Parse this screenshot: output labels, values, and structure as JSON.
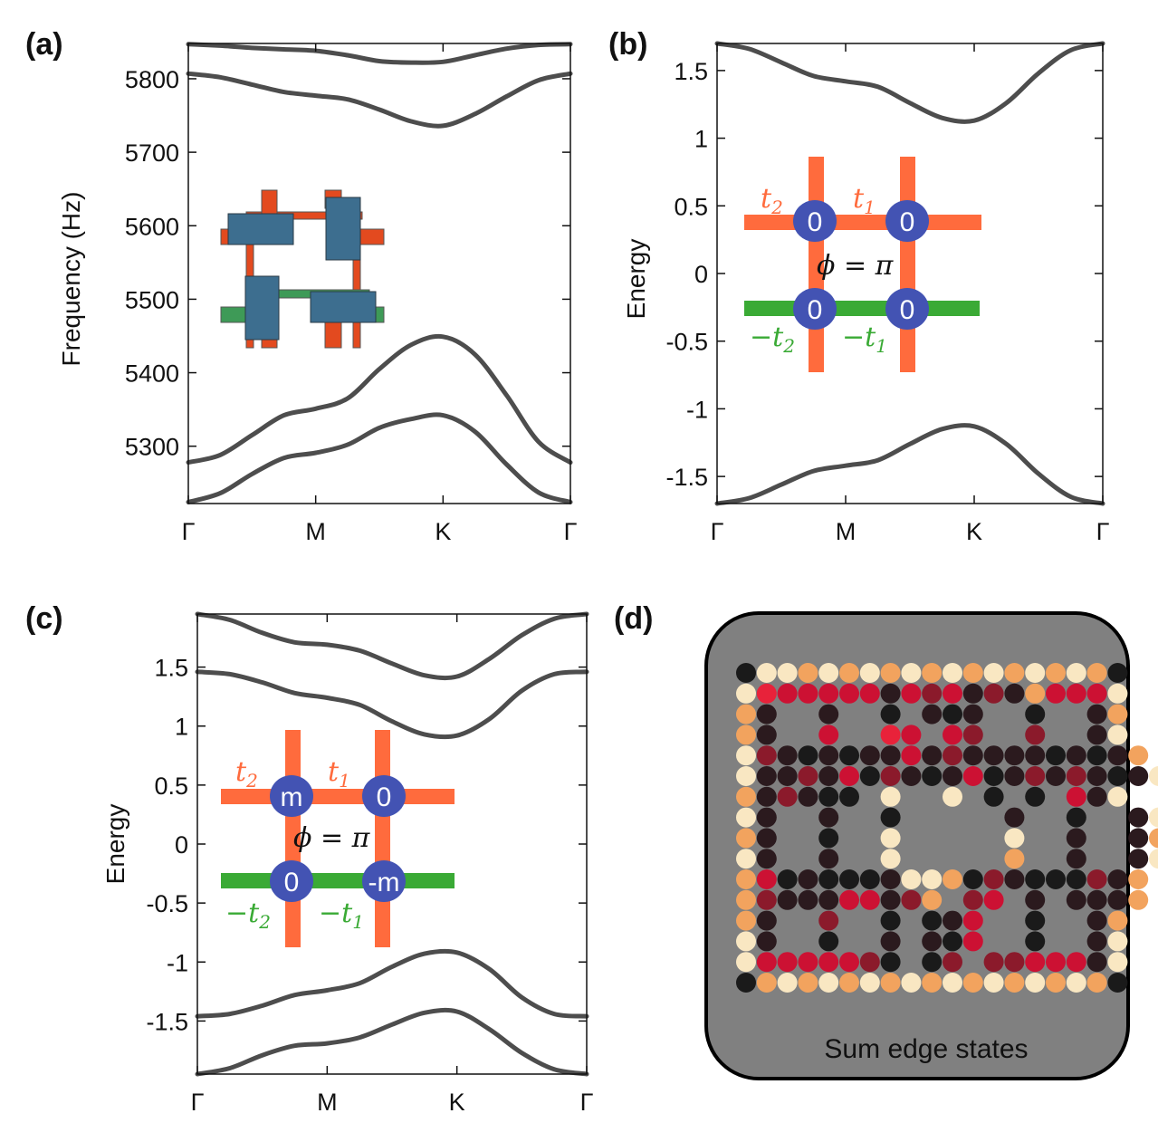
{
  "panel_labels": [
    "(a)",
    "(b)",
    "(c)",
    "(d)"
  ],
  "colors": {
    "band": "#4d4d4d",
    "hopping_positive": "#ff6b3d",
    "hopping_negative": "#3aaa35",
    "node": "#4353b3",
    "resonator_body": "#3d6e8f",
    "resonator_stub_red": "#e34a1f",
    "resonator_stub_green": "#3e9a57",
    "edge_panel_bg": "#808080"
  },
  "chart_data": [
    {
      "type": "line",
      "panel": "(a)",
      "ylabel": "Frequency (Hz)",
      "ylim": [
        5222,
        5848
      ],
      "yticks": [
        5300,
        5400,
        5500,
        5600,
        5700,
        5800
      ],
      "ytick_labels": [
        "5300",
        "5400",
        "5500",
        "5600",
        "5700",
        "5800"
      ],
      "xticks": [
        "Γ",
        "M",
        "K",
        "Γ"
      ],
      "series": [
        {
          "x": [
            0,
            0.25,
            0.5,
            0.75,
            1,
            1.25,
            1.5,
            1.75,
            2,
            2.25,
            2.5,
            2.75,
            3
          ],
          "values": [
            5847,
            5845,
            5842,
            5840,
            5838,
            5832,
            5824,
            5822,
            5823,
            5832,
            5841,
            5846,
            5847
          ]
        },
        {
          "x": [
            0,
            0.25,
            0.5,
            0.75,
            1,
            1.25,
            1.5,
            1.75,
            2,
            2.25,
            2.5,
            2.75,
            3
          ],
          "values": [
            5807,
            5802,
            5792,
            5782,
            5777,
            5772,
            5758,
            5742,
            5736,
            5752,
            5776,
            5798,
            5807
          ]
        },
        {
          "x": [
            0,
            0.25,
            0.5,
            0.75,
            1,
            1.25,
            1.5,
            1.75,
            2,
            2.25,
            2.5,
            2.75,
            3
          ],
          "values": [
            5278,
            5288,
            5315,
            5342,
            5351,
            5365,
            5405,
            5438,
            5449,
            5425,
            5369,
            5306,
            5278
          ]
        },
        {
          "x": [
            0,
            0.25,
            0.5,
            0.75,
            1,
            1.25,
            1.5,
            1.75,
            2,
            2.25,
            2.5,
            2.75,
            3
          ],
          "values": [
            5224,
            5236,
            5262,
            5284,
            5291,
            5302,
            5325,
            5337,
            5342,
            5320,
            5275,
            5237,
            5224
          ]
        }
      ]
    },
    {
      "type": "line",
      "panel": "(b)",
      "ylabel": "Energy",
      "ylim": [
        -1.7,
        1.7
      ],
      "yticks": [
        -1.5,
        -1,
        -0.5,
        0,
        0.5,
        1,
        1.5
      ],
      "ytick_labels": [
        "-1.5",
        "-1",
        "-0.5",
        "0",
        "0.5",
        "1",
        "1.5"
      ],
      "xticks": [
        "Γ",
        "M",
        "K",
        "Γ"
      ],
      "series": [
        {
          "x": [
            0,
            0.25,
            0.5,
            0.75,
            1,
            1.25,
            1.5,
            1.75,
            2,
            2.25,
            2.5,
            2.75,
            3
          ],
          "values": [
            1.7,
            1.66,
            1.56,
            1.46,
            1.42,
            1.38,
            1.26,
            1.15,
            1.13,
            1.26,
            1.48,
            1.65,
            1.7
          ]
        },
        {
          "x": [
            0,
            0.25,
            0.5,
            0.75,
            1,
            1.25,
            1.5,
            1.75,
            2,
            2.25,
            2.5,
            2.75,
            3
          ],
          "values": [
            -1.7,
            -1.66,
            -1.56,
            -1.46,
            -1.42,
            -1.38,
            -1.26,
            -1.15,
            -1.13,
            -1.26,
            -1.48,
            -1.65,
            -1.7
          ]
        }
      ]
    },
    {
      "type": "line",
      "panel": "(c)",
      "ylabel": "Energy",
      "ylim": [
        -1.95,
        1.95
      ],
      "yticks": [
        -1.5,
        -1,
        -0.5,
        0,
        0.5,
        1,
        1.5
      ],
      "ytick_labels": [
        "-1.5",
        "-1",
        "-0.5",
        "0",
        "0.5",
        "1",
        "1.5"
      ],
      "xticks": [
        "Γ",
        "M",
        "K",
        "Γ"
      ],
      "series": [
        {
          "x": [
            0,
            0.25,
            0.5,
            0.75,
            1,
            1.25,
            1.5,
            1.75,
            2,
            2.25,
            2.5,
            2.75,
            3
          ],
          "values": [
            1.95,
            1.9,
            1.79,
            1.71,
            1.69,
            1.64,
            1.53,
            1.43,
            1.42,
            1.57,
            1.77,
            1.91,
            1.95
          ]
        },
        {
          "x": [
            0,
            0.25,
            0.5,
            0.75,
            1,
            1.25,
            1.5,
            1.75,
            2,
            2.25,
            2.5,
            2.75,
            3
          ],
          "values": [
            1.46,
            1.44,
            1.37,
            1.28,
            1.24,
            1.18,
            1.04,
            0.93,
            0.92,
            1.06,
            1.3,
            1.44,
            1.46
          ]
        },
        {
          "x": [
            0,
            0.25,
            0.5,
            0.75,
            1,
            1.25,
            1.5,
            1.75,
            2,
            2.25,
            2.5,
            2.75,
            3
          ],
          "values": [
            -1.46,
            -1.44,
            -1.37,
            -1.28,
            -1.24,
            -1.18,
            -1.04,
            -0.93,
            -0.92,
            -1.06,
            -1.3,
            -1.44,
            -1.46
          ]
        },
        {
          "x": [
            0,
            0.25,
            0.5,
            0.75,
            1,
            1.25,
            1.5,
            1.75,
            2,
            2.25,
            2.5,
            2.75,
            3
          ],
          "values": [
            -1.95,
            -1.9,
            -1.79,
            -1.71,
            -1.69,
            -1.64,
            -1.53,
            -1.43,
            -1.42,
            -1.57,
            -1.77,
            -1.91,
            -1.95
          ]
        }
      ]
    },
    {
      "type": "heatmap",
      "panel": "(d)",
      "caption": "Sum edge states",
      "palette": [
        "#1a1a1a",
        "#2b1a1e",
        "#8b1a2b",
        "#cc1133",
        "#e8223a",
        "#f2a35e",
        "#f9e7c2"
      ],
      "grid": [
        "0665656565656565650",
        "6433333132312153336",
        "51  1  0 101  0  15",
        "51  3  43 32  2  16",
        "62101011312111101015",
        "611213021013012121016",
        "512100 6  6 0 0 316",
        "61  1  0     1  0  16",
        "51  0  6     6  1  15",
        "61  1  6     5  1  16",
        "53010001665021000215",
        "5211133125 23 1 1115",
        "51  2  0 013  0  15",
        "61  0  1 103  0  16",
        "63333320 02 2233316",
        "0565656565656565650"
      ]
    }
  ],
  "insets": {
    "b": {
      "t2": "t",
      "t2_sub": "2",
      "t1": "t",
      "t1_sub": "1",
      "phi": "ϕ = π",
      "neg_t2": "−t",
      "neg_t2_sub": "2",
      "neg_t1": "−t",
      "neg_t1_sub": "1",
      "nodes": [
        "0",
        "0",
        "0",
        "0"
      ]
    },
    "c": {
      "t2": "t",
      "t2_sub": "2",
      "t1": "t",
      "t1_sub": "1",
      "phi": "ϕ = π",
      "neg_t2": "−t",
      "neg_t2_sub": "2",
      "neg_t1": "−t",
      "neg_t1_sub": "1",
      "nodes": [
        "m",
        "0",
        "0",
        "-m"
      ]
    }
  }
}
